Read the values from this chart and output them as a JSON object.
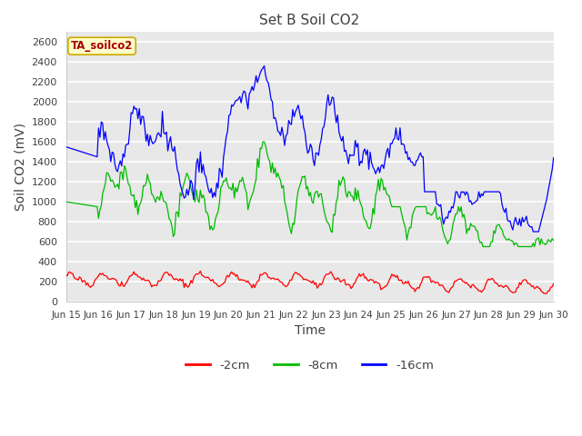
{
  "title": "Set B Soil CO2",
  "ylabel": "Soil CO2 (mV)",
  "xlabel": "Time",
  "annotation": "TA_soilco2",
  "legend_labels": [
    "-2cm",
    "-8cm",
    "-16cm"
  ],
  "legend_colors": [
    "#ff0000",
    "#00bb00",
    "#0000ff"
  ],
  "ylim": [
    0,
    2700
  ],
  "yticks": [
    0,
    200,
    400,
    600,
    800,
    1000,
    1200,
    1400,
    1600,
    1800,
    2000,
    2200,
    2400,
    2600
  ],
  "fig_bg": "#ffffff",
  "plot_bg": "#e8e8e8",
  "grid_color": "#ffffff",
  "title_color": "#404040",
  "label_color": "#404040",
  "tick_color": "#404040",
  "annotation_fg": "#aa0000",
  "annotation_bg": "#ffffcc",
  "annotation_border": "#ccaa00"
}
